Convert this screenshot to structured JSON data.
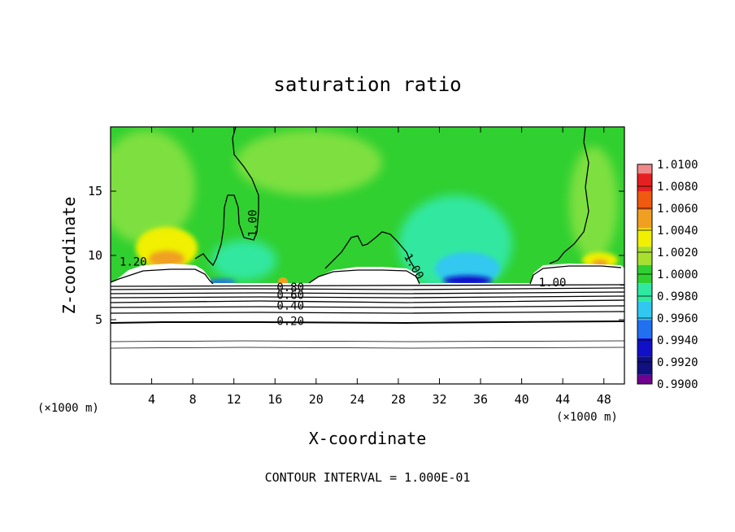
{
  "chart_data": {
    "type": "heatmap",
    "title": "saturation ratio",
    "xlabel": "X-coordinate",
    "ylabel": "Z-coordinate",
    "x_unit_left": "(×1000 m)",
    "x_unit_right": "(×1000 m)",
    "footer": "CONTOUR INTERVAL = 1.000E-01",
    "xlim": [
      0,
      50
    ],
    "ylim": [
      0,
      20
    ],
    "x_ticks": [
      4,
      8,
      12,
      16,
      20,
      24,
      28,
      32,
      36,
      40,
      44,
      48
    ],
    "y_ticks": [
      5,
      10,
      15
    ],
    "colorbar": {
      "labels": [
        "1.0100",
        "1.0080",
        "1.0060",
        "1.0040",
        "1.0020",
        "1.0000",
        "0.9980",
        "0.9960",
        "0.9940",
        "0.9920",
        "0.9900"
      ],
      "colors": [
        "#f08a8a",
        "#e42020",
        "#f05a10",
        "#f0a020",
        "#f0f000",
        "#a8e030",
        "#30d030",
        "#30e8a0",
        "#30c8f0",
        "#2070f0",
        "#1010c8",
        "#101080",
        "#700090"
      ]
    },
    "contour_labels": [
      {
        "text": "1.00",
        "x": 14.2,
        "z": 12.5,
        "rotate": -90
      },
      {
        "text": "1.20",
        "x": 2.2,
        "z": 9.2,
        "rotate": 0
      },
      {
        "text": "1.00",
        "x": 29.2,
        "z": 9.0,
        "rotate": 60
      },
      {
        "text": "1.00",
        "x": 43.0,
        "z": 7.6,
        "rotate": 0
      },
      {
        "text": "0.80",
        "x": 17.5,
        "z": 7.2,
        "rotate": 0
      },
      {
        "text": "0.60",
        "x": 17.5,
        "z": 6.6,
        "rotate": 0
      },
      {
        "text": "0.40",
        "x": 17.5,
        "z": 5.8,
        "rotate": 0
      },
      {
        "text": "0.20",
        "x": 17.5,
        "z": 4.6,
        "rotate": 0
      }
    ],
    "field_colors": {
      "background": "#30d030",
      "light_green": "#7ee040",
      "yellow": "#f0f000",
      "orange": "#f0a020",
      "cyan": "#30e8a0",
      "light_blue": "#30c8f0",
      "blue": "#1010c8"
    }
  }
}
